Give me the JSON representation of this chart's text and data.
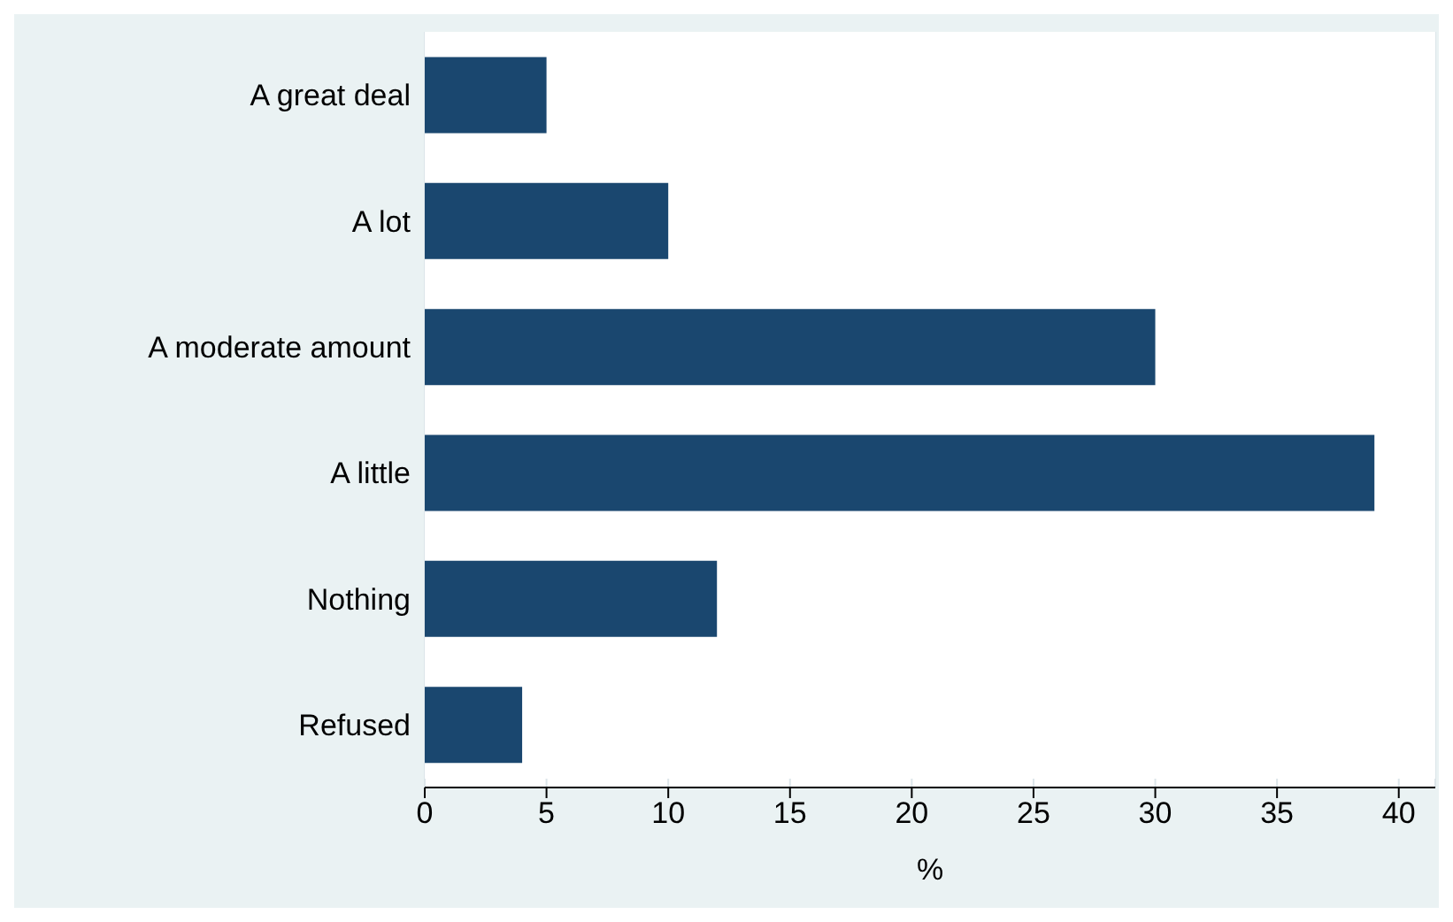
{
  "chart_data": {
    "type": "bar",
    "orientation": "horizontal",
    "xlabel": "%",
    "categories": [
      "A great deal",
      "A lot",
      "A moderate amount",
      "A little",
      "Nothing",
      "Refused"
    ],
    "values": [
      5,
      10,
      30,
      39,
      12,
      4
    ],
    "color": "#1a476f",
    "xlim": [
      0,
      41.5
    ],
    "xticks": [
      0,
      5,
      10,
      15,
      20,
      25,
      30,
      35,
      40
    ],
    "grid": "x"
  }
}
